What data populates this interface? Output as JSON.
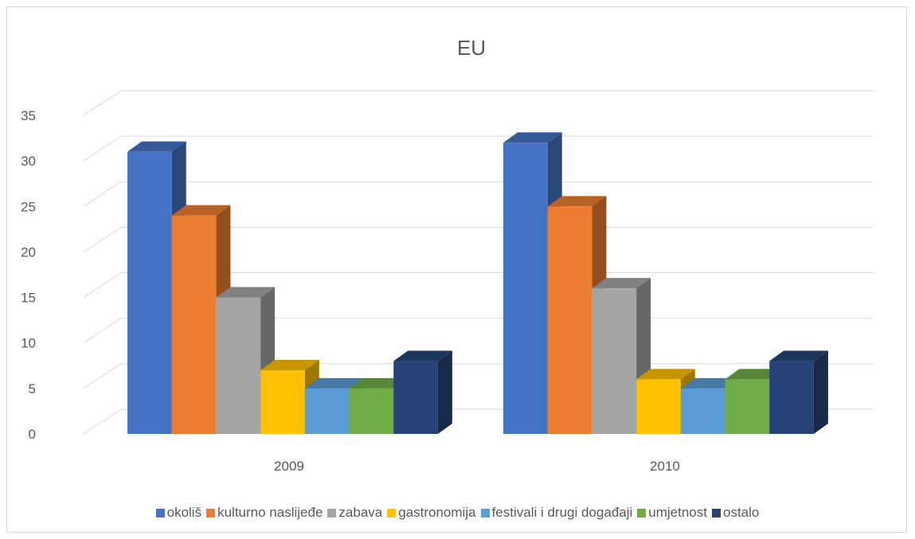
{
  "chart_data": {
    "type": "bar",
    "title": "EU",
    "categories": [
      "2009",
      "2010"
    ],
    "series": [
      {
        "name": "okoliš",
        "values": [
          31,
          32
        ],
        "color": "#4472C4"
      },
      {
        "name": "kulturno naslijeđe",
        "values": [
          24,
          25
        ],
        "color": "#ED7D31"
      },
      {
        "name": "zabava",
        "values": [
          15,
          16
        ],
        "color": "#A5A5A5"
      },
      {
        "name": "gastronomija",
        "values": [
          7,
          6
        ],
        "color": "#FFC000"
      },
      {
        "name": "festivali i drugi događaji",
        "values": [
          5,
          5
        ],
        "color": "#5B9BD5"
      },
      {
        "name": "umjetnost",
        "values": [
          5,
          6
        ],
        "color": "#70AD47"
      },
      {
        "name": "ostalo",
        "values": [
          8,
          8
        ],
        "color": "#264478"
      }
    ],
    "ylim": [
      0,
      35
    ],
    "yticks": [
      "0",
      "5",
      "10",
      "15",
      "20",
      "25",
      "30",
      "35"
    ],
    "grid": true,
    "legend_position": "bottom",
    "style": "3d-clustered-column"
  }
}
